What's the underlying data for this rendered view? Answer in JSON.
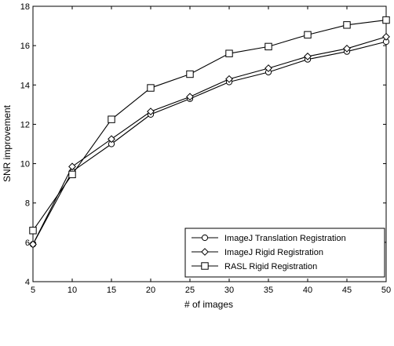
{
  "chart_data": {
    "type": "line",
    "xlabel": "# of images",
    "ylabel": "SNR improvement",
    "xlim": [
      5,
      50
    ],
    "ylim": [
      4,
      18
    ],
    "xticks": [
      5,
      10,
      15,
      20,
      25,
      30,
      35,
      40,
      45,
      50
    ],
    "yticks": [
      4,
      6,
      8,
      10,
      12,
      14,
      16,
      18
    ],
    "grid": false,
    "legend_position": "bottom-right",
    "x": [
      5,
      10,
      15,
      20,
      25,
      30,
      35,
      40,
      45,
      50
    ],
    "series": [
      {
        "name": "ImageJ Translation Registration",
        "marker": "circle",
        "values": [
          5.9,
          9.6,
          11.0,
          12.5,
          13.3,
          14.15,
          14.65,
          15.3,
          15.7,
          16.2
        ]
      },
      {
        "name": "ImageJ Rigid Registration",
        "marker": "diamond",
        "values": [
          5.9,
          9.85,
          11.25,
          12.65,
          13.4,
          14.3,
          14.85,
          15.45,
          15.85,
          16.45
        ]
      },
      {
        "name": "RASL Rigid Registration",
        "marker": "square",
        "values": [
          6.6,
          9.45,
          12.25,
          13.85,
          14.55,
          15.6,
          15.95,
          16.55,
          17.05,
          17.3
        ]
      }
    ]
  }
}
